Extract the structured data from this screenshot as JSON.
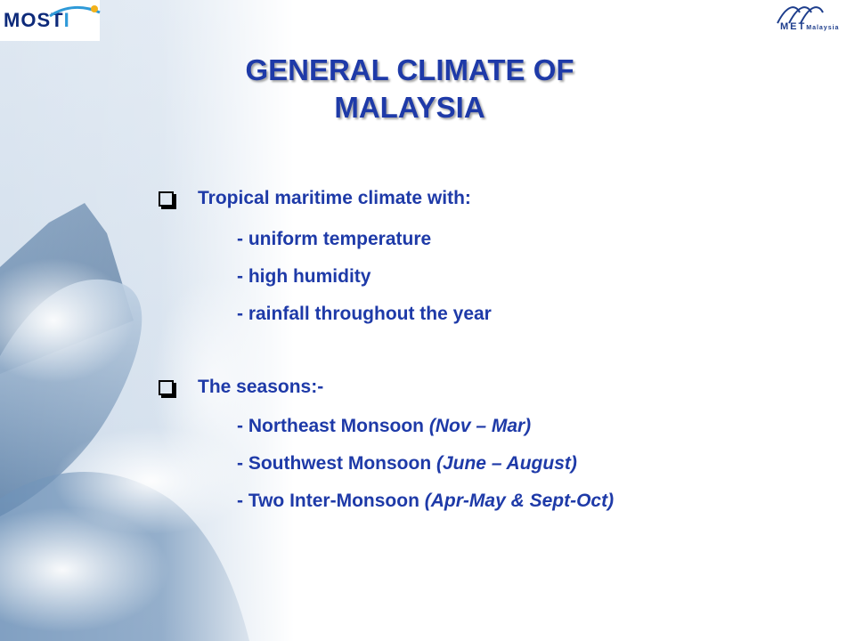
{
  "logos": {
    "left_text_a": "MOST",
    "left_text_b": "I",
    "right_text_a": "MET",
    "right_text_b": "Malaysia"
  },
  "title": {
    "line1": "GENERAL CLIMATE OF",
    "line2": "MALAYSIA"
  },
  "sections": [
    {
      "heading": "Tropical maritime climate with:",
      "items": [
        {
          "text": "- uniform temperature",
          "detail": ""
        },
        {
          "text": "- high humidity",
          "detail": ""
        },
        {
          "text": "- rainfall throughout the year",
          "detail": ""
        }
      ]
    },
    {
      "heading": "The seasons:-",
      "items": [
        {
          "text": "- Northeast Monsoon ",
          "detail": "(Nov – Mar)"
        },
        {
          "text": "- Southwest Monsoon ",
          "detail": "(June – August)"
        },
        {
          "text": "- Two Inter-Monsoon ",
          "detail": "(Apr-May & Sept-Oct)"
        }
      ]
    }
  ],
  "colors": {
    "text": "#1e3aa8",
    "bullet": "#000000",
    "background": "#ffffff",
    "art": "#9fb7d2"
  }
}
